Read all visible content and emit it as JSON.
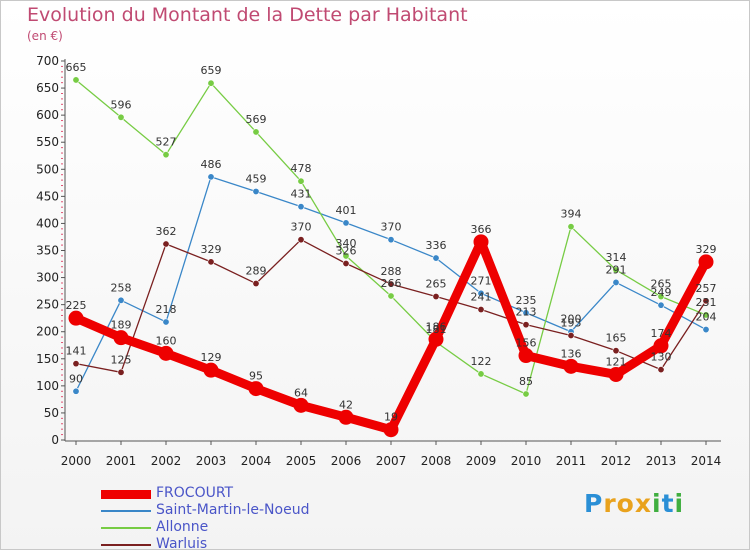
{
  "header": {
    "title": "Evolution du Montant de la Dette par Habitant",
    "unit": "(en €)"
  },
  "logo": {
    "letters": [
      "P",
      "r",
      "o",
      "x",
      "i",
      "t",
      "i"
    ],
    "colors": [
      "#2a8fd6",
      "#e9a21d",
      "#e9a21d",
      "#e9a21d",
      "#3fae3f",
      "#2a8fd6",
      "#3fae3f"
    ]
  },
  "chart_data": {
    "type": "line",
    "title": "Evolution du Montant de la Dette par Habitant",
    "ylabel": "(en €)",
    "xlabel": "",
    "x": [
      "2000",
      "2001",
      "2002",
      "2003",
      "2004",
      "2005",
      "2006",
      "2007",
      "2008",
      "2009",
      "2010",
      "2011",
      "2012",
      "2013",
      "2014"
    ],
    "ylim": [
      0,
      700
    ],
    "yticks": [
      "0",
      "50",
      "100",
      "150",
      "200",
      "250",
      "300",
      "350",
      "400",
      "450",
      "500",
      "550",
      "600",
      "650",
      "700"
    ],
    "grid": false,
    "legend_position": "bottom-left",
    "series": [
      {
        "name": "FROCOURT",
        "color": "#ee0000",
        "values": [
          225,
          189,
          160,
          129,
          95,
          64,
          42,
          19,
          186,
          366,
          156,
          136,
          121,
          174,
          329
        ],
        "labels": [
          "225",
          "189",
          "160",
          "129",
          "95",
          "64",
          "42",
          "19",
          "186",
          "366",
          "156",
          "136",
          "121",
          "174",
          "329"
        ]
      },
      {
        "name": "Saint-Martin-le-Noeud",
        "color": "#3a87c8",
        "values": [
          90,
          258,
          218,
          486,
          459,
          431,
          401,
          370,
          336,
          271,
          235,
          200,
          291,
          249,
          204
        ],
        "labels": [
          "90",
          "258",
          "218",
          "486",
          "459",
          "431",
          "401",
          "370",
          "336",
          "271",
          "235",
          "200",
          "291",
          "249",
          "204"
        ]
      },
      {
        "name": "Allonne",
        "color": "#77cc44",
        "values": [
          665,
          596,
          527,
          659,
          569,
          478,
          340,
          266,
          181,
          122,
          85,
          394,
          314,
          265,
          231
        ],
        "labels": [
          "665",
          "596",
          "527",
          "659",
          "569",
          "478",
          "340",
          "266",
          "181",
          "122",
          "85",
          "394",
          "314",
          "265",
          "231"
        ]
      },
      {
        "name": "Warluis",
        "color": "#7a2020",
        "values": [
          141,
          125,
          362,
          329,
          289,
          370,
          326,
          288,
          265,
          241,
          213,
          193,
          165,
          130,
          257
        ],
        "labels": [
          "141",
          "125",
          "362",
          "329",
          "289",
          "370",
          "326",
          "288",
          "265",
          "241",
          "213",
          "193",
          "165",
          "130",
          "257"
        ]
      }
    ]
  }
}
